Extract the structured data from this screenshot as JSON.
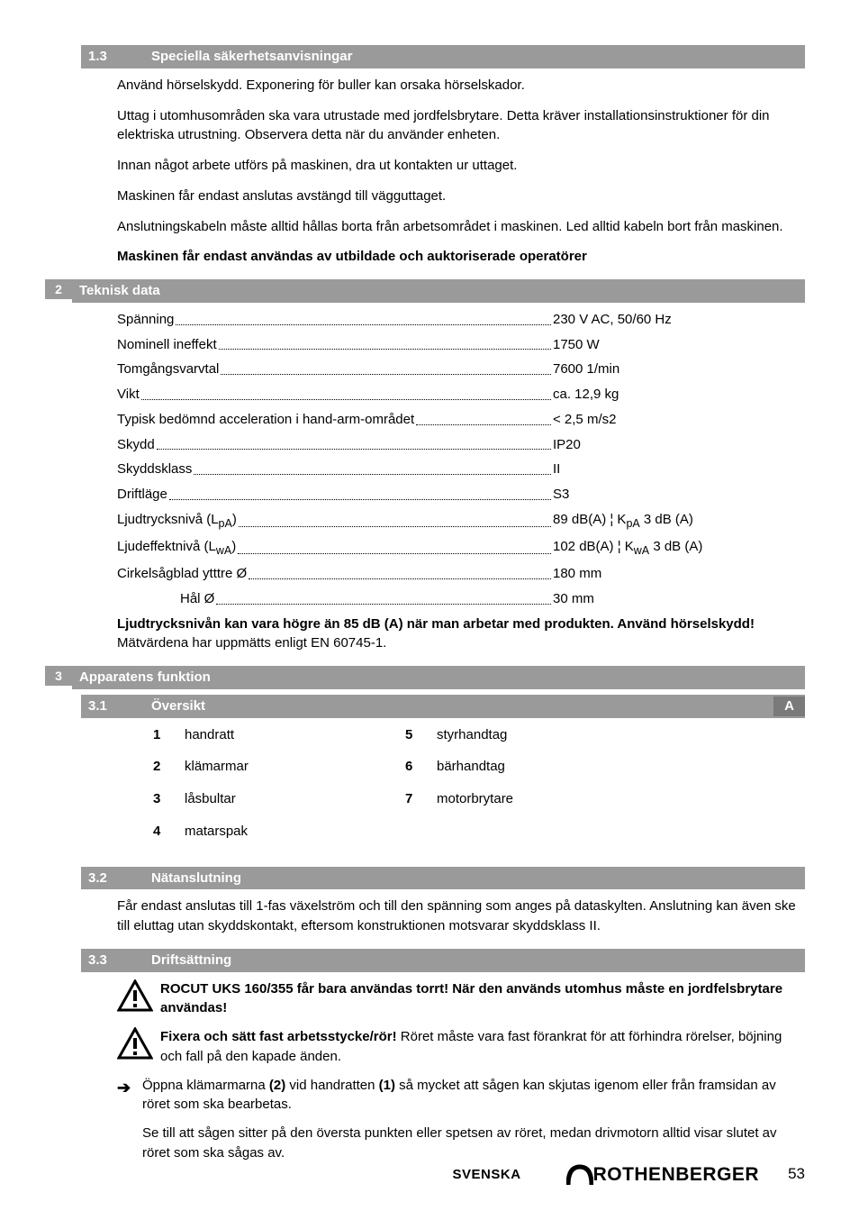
{
  "sec13": {
    "num": "1.3",
    "title": "Speciella säkerhetsanvisningar"
  },
  "p1": "Använd hörselskydd. Exponering för buller kan orsaka hörselskador.",
  "p2": "Uttag i utomhusområden ska vara utrustade med jordfelsbrytare. Detta kräver installationsinstruktioner för din elektriska utrustning. Observera detta när du använder enheten.",
  "p3": "Innan något arbete utförs på maskinen, dra ut kontakten ur uttaget.",
  "p4": "Maskinen får endast anslutas avstängd till vägguttaget.",
  "p5": "Anslutningskabeln måste alltid hållas borta från arbetsområdet i maskinen. Led alltid kabeln bort från maskinen.",
  "p6": "Maskinen får endast användas av utbildade och auktoriserade operatörer",
  "sec2": {
    "num": "2",
    "title": "Teknisk data"
  },
  "specs": [
    {
      "l": "Spänning",
      "v": "230 V AC, 50/60 Hz"
    },
    {
      "l": "Nominell ineffekt ",
      "v": "1750 W"
    },
    {
      "l": "Tomgångsvarvtal ",
      "v": "7600 1/min"
    },
    {
      "l": "Vikt",
      "v": "ca. 12,9 kg"
    },
    {
      "l": "Typisk bedömnd acceleration i hand-arm-området",
      "v": "< 2,5 m/s2"
    },
    {
      "l": "Skydd",
      "v": "IP20"
    },
    {
      "l": "Skyddsklass ",
      "v": "II"
    },
    {
      "l": "Driftläge",
      "v": "S3"
    }
  ],
  "spec_lp_pre": "Ljudtrycksnivå (L",
  "spec_lp_sub": "pA",
  "spec_lp_post": ") ",
  "spec_lp_v_a": " 89 dB(A) ¦ K",
  "spec_lp_v_b": " 3 dB (A)",
  "spec_lw_pre": "Ljudeffektnivå (L",
  "spec_lw_sub": "wA",
  "spec_lw_post": ") ",
  "spec_lw_v_a": "102 dB(A) ¦ K",
  "spec_lw_v_b": " 3 dB (A)",
  "spec_blade": {
    "l": "Cirkelsågblad ytttre Ø",
    "v": "180 mm"
  },
  "spec_hole": {
    "l": "Hål Ø ",
    "v": "30 mm"
  },
  "noise_bold": "Ljudtrycksnivån kan vara högre än 85 dB (A) när man arbetar med produkten. Använd hörselskydd!",
  "noise_tail": " Mätvärdena har uppmätts enligt EN 60745-1.",
  "sec3": {
    "num": "3",
    "title": "Apparatens funktion"
  },
  "sec31": {
    "num": "3.1",
    "title": "Översikt",
    "tag": "A"
  },
  "overview": {
    "left": [
      {
        "n": "1",
        "t": "handratt"
      },
      {
        "n": "2",
        "t": "klämarmar"
      },
      {
        "n": "3",
        "t": "låsbultar"
      },
      {
        "n": "4",
        "t": "matarspak"
      }
    ],
    "right": [
      {
        "n": "5",
        "t": "styrhandtag"
      },
      {
        "n": "6",
        "t": "bärhandtag"
      },
      {
        "n": "7",
        "t": "motorbrytare"
      }
    ]
  },
  "sec32": {
    "num": "3.2",
    "title": "Nätanslutning"
  },
  "p32": "Får endast anslutas till 1-fas växelström och till den spänning som anges på dataskylten. Anslutning kan även ske till eluttag utan skyddskontakt, eftersom konstruktionen motsvarar skyddsklass II.",
  "sec33": {
    "num": "3.3",
    "title": "Driftsättning"
  },
  "warn1": "ROCUT UKS 160/355 får bara användas torrt! När den används utomhus måste en jordfelsbrytare användas!",
  "warn2_b": "Fixera och sätt fast arbetsstycke/rör!",
  "warn2_t": " Röret måste vara fast förankrat för att förhindra rörelser, böjning och fall på den kapade änden.",
  "arr1_a": "Öppna klämarmarna ",
  "arr1_b": "(2)",
  "arr1_c": " vid handratten ",
  "arr1_d": "(1)",
  "arr1_e": " så mycket att sågen kan skjutas igenom eller från framsidan av röret som ska bearbetas.",
  "arr2": "Se till att sågen sitter på den översta punkten eller spetsen av röret, medan drivmotorn alltid visar slutet av röret som ska sågas av.",
  "footer": {
    "lang": "SVENSKA",
    "brand": "ROTHENBERGER",
    "page": "53"
  }
}
